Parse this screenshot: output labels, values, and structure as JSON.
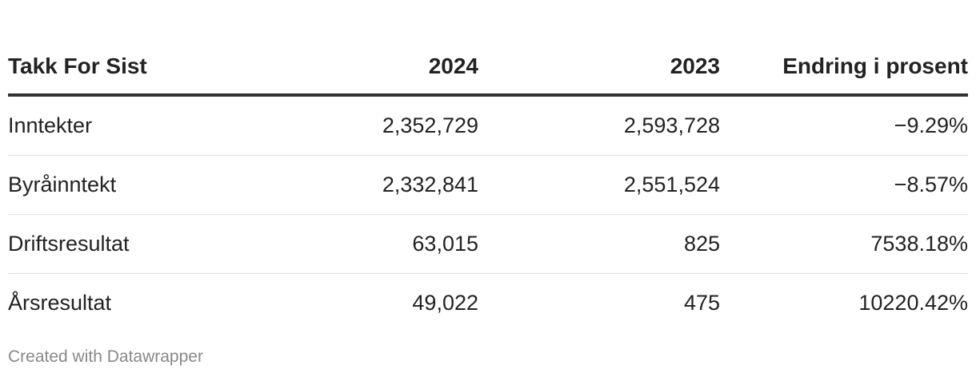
{
  "table": {
    "header": [
      "Takk For Sist",
      "2024",
      "2023",
      "Endring i prosent"
    ],
    "rows": [
      [
        "Inntekter",
        "2,352,729",
        "2,593,728",
        "−9.29%"
      ],
      [
        "Byråinntekt",
        "2,332,841",
        "2,551,524",
        "−8.57%"
      ],
      [
        "Driftsresultat",
        "63,015",
        "825",
        "7538.18%"
      ],
      [
        "Årsresultat",
        "49,022",
        "475",
        "10220.42%"
      ]
    ]
  },
  "footer": "Created with Datawrapper"
}
